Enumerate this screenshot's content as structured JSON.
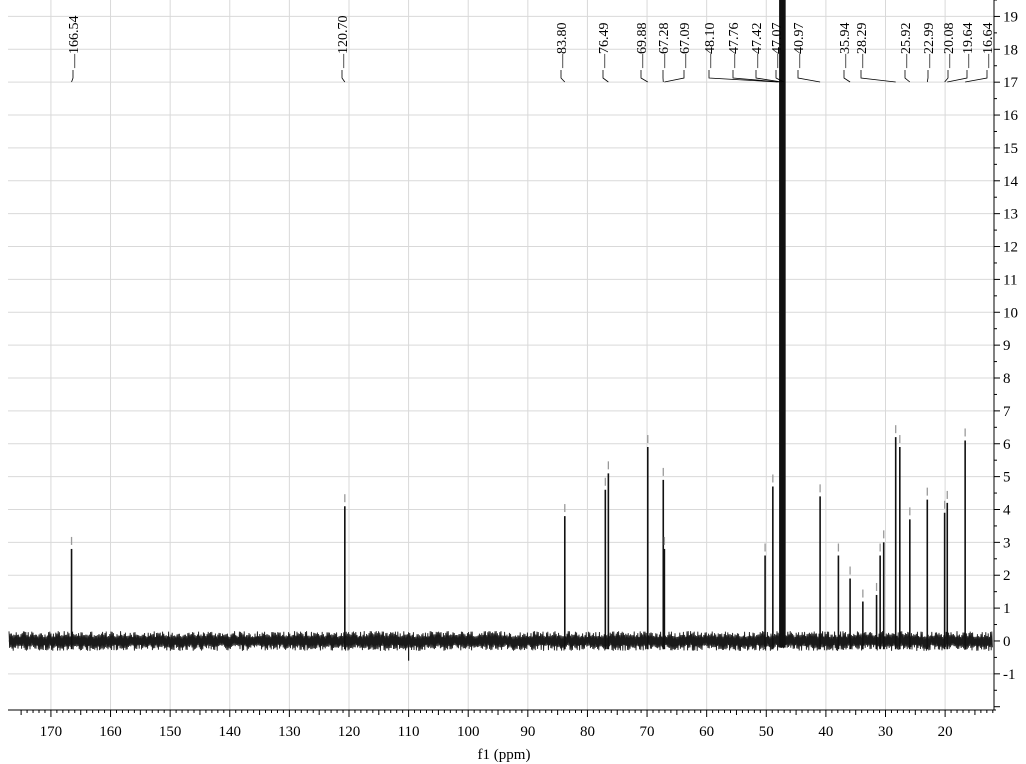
{
  "chart_data": {
    "type": "line",
    "title": "",
    "xlabel": "f1 (ppm)",
    "ylabel": "",
    "x_reversed": true,
    "xlim": [
      177.2,
      11.8
    ],
    "ylim": [
      -2.1,
      19.5
    ],
    "grid": true,
    "x_ticks": [
      170,
      160,
      150,
      140,
      130,
      120,
      110,
      100,
      90,
      80,
      70,
      60,
      50,
      40,
      30,
      20
    ],
    "y_ticks": [
      -1,
      0,
      1,
      2,
      3,
      4,
      5,
      6,
      7,
      8,
      9,
      10,
      11,
      12,
      13,
      14,
      15,
      16,
      17,
      18,
      19
    ],
    "baseline": 0,
    "noise_amplitude": 0.3,
    "peak_labels": [
      "166.54",
      "120.70",
      "83.80",
      "76.49",
      "69.88",
      "67.28",
      "67.09",
      "48.10",
      "47.76",
      "47.42",
      "47.07",
      "40.97",
      "35.94",
      "28.29",
      "25.92",
      "22.99",
      "20.08",
      "19.64",
      "16.64"
    ],
    "peaks": [
      {
        "x": 166.54,
        "y": 2.8
      },
      {
        "x": 120.7,
        "y": 4.1
      },
      {
        "x": 83.8,
        "y": 3.8
      },
      {
        "x": 77.0,
        "y": 4.6
      },
      {
        "x": 76.49,
        "y": 5.1
      },
      {
        "x": 69.88,
        "y": 5.9
      },
      {
        "x": 67.28,
        "y": 4.9
      },
      {
        "x": 67.09,
        "y": 2.8
      },
      {
        "x": 50.2,
        "y": 2.6
      },
      {
        "x": 48.9,
        "y": 4.7
      },
      {
        "x": 47.6,
        "y": 19.5
      },
      {
        "x": 47.4,
        "y": 19.5
      },
      {
        "x": 47.2,
        "y": 19.5
      },
      {
        "x": 47.0,
        "y": 19.5
      },
      {
        "x": 40.97,
        "y": 4.4
      },
      {
        "x": 37.9,
        "y": 2.6
      },
      {
        "x": 35.94,
        "y": 1.9
      },
      {
        "x": 33.8,
        "y": 1.2
      },
      {
        "x": 31.5,
        "y": 1.4
      },
      {
        "x": 30.9,
        "y": 2.6
      },
      {
        "x": 30.3,
        "y": 3.0
      },
      {
        "x": 28.29,
        "y": 6.2
      },
      {
        "x": 27.6,
        "y": 5.9
      },
      {
        "x": 25.92,
        "y": 3.7
      },
      {
        "x": 22.99,
        "y": 4.3
      },
      {
        "x": 20.08,
        "y": 3.9
      },
      {
        "x": 19.64,
        "y": 4.2
      },
      {
        "x": 16.64,
        "y": 6.1
      }
    ]
  }
}
